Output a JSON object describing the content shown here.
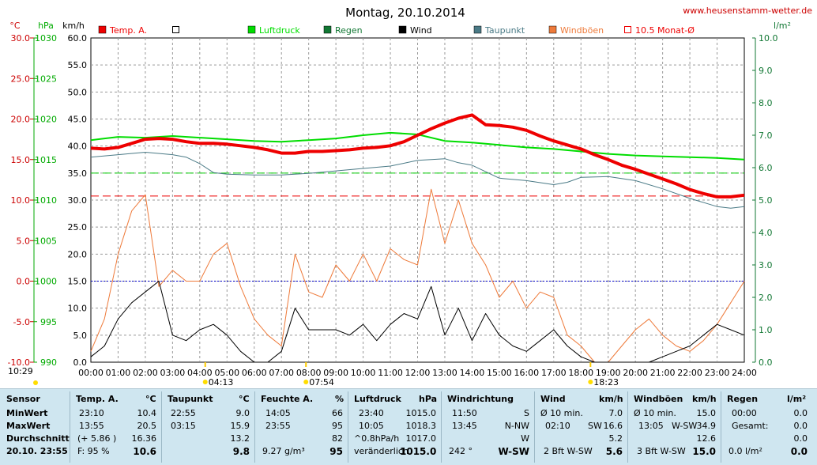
{
  "title": "Montag, 20.10.2014",
  "site": "www.heusenstamm-wetter.de",
  "axis_units": {
    "temp": "°C",
    "press": "hPa",
    "wind": "km/h",
    "rain": "l/m²"
  },
  "legend": [
    {
      "label": "Temp. A.",
      "color": "#ee0000",
      "box": "fill"
    },
    {
      "label": "",
      "color": "#ffffff",
      "box": "outline"
    },
    {
      "label": "Luftdruck",
      "color": "#00dd00",
      "box": "fill"
    },
    {
      "label": "Regen",
      "color": "#117733",
      "box": "fill"
    },
    {
      "label": "Wind",
      "color": "#000000",
      "box": "fill"
    },
    {
      "label": "Taupunkt",
      "color": "#4a7a86",
      "box": "fill"
    },
    {
      "label": "Windböen",
      "color": "#ee7a3a",
      "box": "fill"
    },
    {
      "label": "10.5 Monat-Ø",
      "color": "#ee0000",
      "box": "outline"
    }
  ],
  "markers": {
    "left_time": "10:29",
    "m1": "04:13",
    "m2": "07:54",
    "m3": "18:23"
  },
  "chart_data": {
    "type": "line",
    "x_ticks": [
      "00:00",
      "01:00",
      "02:00",
      "03:00",
      "04:00",
      "05:00",
      "06:00",
      "07:00",
      "08:00",
      "09:00",
      "10:00",
      "11:00",
      "12:00",
      "13:00",
      "14:00",
      "15:00",
      "16:00",
      "17:00",
      "18:00",
      "19:00",
      "20:00",
      "21:00",
      "22:00",
      "23:00",
      "24:00"
    ],
    "xlim": [
      0,
      24
    ],
    "temp_ticks": [
      "30.0",
      "25.0",
      "20.0",
      "15.0",
      "10.0",
      "5.0",
      "0.0",
      "-5.0",
      "-10.0"
    ],
    "press_ticks": [
      "1030",
      "1025",
      "1020",
      "1015",
      "1010",
      "1005",
      "1000",
      "995",
      "990"
    ],
    "wind_ticks": [
      "60.0",
      "55.0",
      "50.0",
      "45.0",
      "40.0",
      "35.0",
      "30.0",
      "25.0",
      "20.0",
      "15.0",
      "10.0",
      "5.0",
      "0.0"
    ],
    "rain_ticks": [
      "10.0",
      "9.0",
      "8.0",
      "7.0",
      "6.0",
      "5.0",
      "4.0",
      "3.0",
      "2.0",
      "1.0",
      "0.0"
    ],
    "temp_range": [
      -10,
      30
    ],
    "press_range": [
      990,
      1030
    ],
    "wind_range": [
      0,
      60
    ],
    "rain_range": [
      0,
      10
    ],
    "reference_lines": [
      {
        "name": "10.5 Monat-Ø",
        "axis": "temp",
        "value": 10.5,
        "color": "#ee0000"
      },
      {
        "axis": "wind",
        "value": 35,
        "color": "#00cc00"
      },
      {
        "axis": "temp",
        "value": 0,
        "color": "#0000cc"
      }
    ],
    "series": [
      {
        "name": "Temp. A.",
        "axis": "temp",
        "color": "#ee0000",
        "x": [
          0,
          0.5,
          1,
          1.5,
          2,
          2.5,
          3,
          3.5,
          4,
          4.5,
          5,
          5.5,
          6,
          6.5,
          7,
          7.5,
          8,
          8.5,
          9,
          9.5,
          10,
          10.5,
          11,
          11.5,
          12,
          12.5,
          13,
          13.5,
          14,
          14.5,
          15,
          15.5,
          16,
          16.5,
          17,
          17.5,
          18,
          18.5,
          19,
          19.5,
          20,
          20.5,
          21,
          21.5,
          22,
          22.5,
          23,
          23.5,
          24
        ],
        "y": [
          16.4,
          16.3,
          16.5,
          17,
          17.5,
          17.6,
          17.5,
          17.2,
          17,
          17,
          16.9,
          16.7,
          16.5,
          16.2,
          15.8,
          15.8,
          16,
          16,
          16.1,
          16.2,
          16.4,
          16.5,
          16.7,
          17.2,
          18,
          18.8,
          19.5,
          20.1,
          20.5,
          19.3,
          19.2,
          19,
          18.6,
          17.9,
          17.3,
          16.8,
          16.3,
          15.6,
          15,
          14.3,
          13.8,
          13.2,
          12.6,
          12,
          11.3,
          10.8,
          10.4,
          10.4,
          10.6
        ]
      },
      {
        "name": "Luftdruck",
        "axis": "press",
        "color": "#00dd00",
        "x": [
          0,
          1,
          2,
          3,
          4,
          5,
          6,
          7,
          8,
          9,
          10,
          11,
          12,
          13,
          14,
          15,
          16,
          17,
          18,
          19,
          20,
          21,
          22,
          23,
          24
        ],
        "y": [
          1017.4,
          1017.8,
          1017.7,
          1017.9,
          1017.7,
          1017.5,
          1017.3,
          1017.2,
          1017.4,
          1017.6,
          1018.0,
          1018.3,
          1018.1,
          1017.3,
          1017.1,
          1016.8,
          1016.5,
          1016.3,
          1016.0,
          1015.7,
          1015.5,
          1015.4,
          1015.3,
          1015.2,
          1015.0
        ]
      },
      {
        "name": "Taupunkt",
        "axis": "temp",
        "color": "#4a7a86",
        "x": [
          0,
          1,
          2,
          3,
          3.5,
          4,
          4.5,
          5,
          6,
          7,
          8,
          9,
          10,
          11,
          12,
          13,
          13.5,
          14,
          15,
          16,
          17,
          17.5,
          18,
          19,
          20,
          21,
          22,
          23,
          23.5,
          24
        ],
        "y": [
          15.3,
          15.6,
          15.9,
          15.6,
          15.3,
          14.5,
          13.4,
          13.2,
          13.1,
          13.1,
          13.3,
          13.6,
          13.9,
          14.2,
          14.9,
          15.1,
          14.6,
          14.3,
          12.7,
          12.4,
          11.9,
          12.2,
          12.8,
          12.9,
          12.4,
          11.4,
          10.2,
          9.2,
          9.0,
          9.2
        ]
      },
      {
        "name": "Wind",
        "axis": "wind",
        "color": "#000000",
        "x": [
          0,
          0.5,
          1,
          1.5,
          2,
          2.5,
          3,
          3.5,
          4,
          4.5,
          5,
          5.5,
          6,
          6.5,
          7,
          7.5,
          8,
          8.5,
          9,
          9.5,
          10,
          10.5,
          11,
          11.5,
          12,
          12.5,
          13,
          13.5,
          14,
          14.5,
          15,
          15.5,
          16,
          16.5,
          17,
          17.5,
          18,
          18.5,
          19,
          19.5,
          20,
          20.5,
          21,
          21.5,
          22,
          22.5,
          23,
          23.5,
          24
        ],
        "y": [
          1,
          3,
          8,
          11,
          13,
          15,
          5,
          4,
          6,
          7,
          5,
          2,
          0,
          0,
          2,
          10,
          6,
          6,
          6,
          5,
          7,
          4,
          7,
          9,
          8,
          14,
          5,
          10,
          4,
          9,
          5,
          3,
          2,
          4,
          6,
          3,
          1,
          0,
          0,
          0,
          0,
          0,
          1,
          2,
          3,
          5,
          7,
          6,
          5
        ]
      },
      {
        "name": "Windböen",
        "axis": "wind",
        "color": "#ee7a3a",
        "x": [
          0,
          0.5,
          1,
          1.5,
          2,
          2.5,
          3,
          3.5,
          4,
          4.5,
          5,
          5.5,
          6,
          6.5,
          7,
          7.5,
          8,
          8.5,
          9,
          9.5,
          10,
          10.5,
          11,
          11.5,
          12,
          12.5,
          13,
          13.5,
          14,
          14.5,
          15,
          15.5,
          16,
          16.5,
          17,
          17.5,
          18,
          18.5,
          19,
          19.5,
          20,
          20.5,
          21,
          21.5,
          22,
          22.5,
          23,
          23.5,
          24
        ],
        "y": [
          2,
          8,
          20,
          28,
          31,
          14,
          17,
          15,
          15,
          20,
          22,
          14,
          8,
          5,
          3,
          20,
          13,
          12,
          18,
          15,
          20,
          15,
          21,
          19,
          18,
          32,
          22,
          30,
          22,
          18,
          12,
          15,
          10,
          13,
          12,
          5,
          3,
          0,
          0,
          3,
          6,
          8,
          5,
          3,
          2,
          4,
          7,
          11,
          15
        ]
      }
    ]
  },
  "stats": {
    "labels": {
      "sensor": "Sensor",
      "min": "MinWert",
      "max": "MaxWert",
      "avg": "Durchschnitt",
      "date": "20.10. 23:55"
    },
    "temp": {
      "title": "Temp. A.",
      "unit": "°C",
      "min_time": "23:10",
      "min_val": "10.4",
      "max_time": "13:55",
      "max_val": "20.5",
      "avg_diff": "(+ 5.86 )",
      "avg_val": "16.36",
      "cur_extra": "F: 95 %",
      "cur_val": "10.6"
    },
    "dew": {
      "title": "Taupunkt",
      "unit": "°C",
      "min_time": "22:55",
      "min_val": "9.0",
      "max_time": "03:15",
      "max_val": "15.9",
      "avg_val": "13.2",
      "cur_val": "9.8"
    },
    "hum": {
      "title": "Feuchte A.",
      "unit": "%",
      "min_time": "14:05",
      "min_val": "66",
      "max_time": "23:55",
      "max_val": "95",
      "avg_val": "82",
      "cur_extra": "9.27 g/m³",
      "cur_val": "95"
    },
    "press": {
      "title": "Luftdruck",
      "unit": "hPa",
      "min_time": "23:40",
      "min_val": "1015.0",
      "max_time": "10:05",
      "max_val": "1018.3",
      "avg_extra": "^0.8hPa/h",
      "avg_val": "1017.0",
      "cur_extra": "veränderlich",
      "cur_val": "1015.0"
    },
    "dir": {
      "title": "Windrichtung",
      "min_time": "11:50",
      "min_val": "S",
      "max_time": "13:45",
      "max_val": "N-NW",
      "avg_val": "W",
      "cur_extra": "242 °",
      "cur_val": "W-SW"
    },
    "wind": {
      "title": "Wind",
      "unit": "km/h",
      "min_time": "Ø 10 min.",
      "min_val": "7.0",
      "max_time": "02:10",
      "max_dir": "SW",
      "max_val": "16.6",
      "avg_val": "5.2",
      "cur_extra": "2 Bft W-SW",
      "cur_val": "5.6"
    },
    "gust": {
      "title": "Windböen",
      "unit": "km/h",
      "min_time": "Ø 10 min.",
      "min_val": "15.0",
      "max_time": "13:05",
      "max_dir": "W-SW",
      "max_val": "34.9",
      "avg_val": "12.6",
      "cur_extra": "3 Bft W-SW",
      "cur_val": "15.0"
    },
    "rain": {
      "title": "Regen",
      "unit": "l/m²",
      "min_time": "00:00",
      "min_val": "0.0",
      "max_time": "Gesamt:",
      "max_val": "0.0",
      "avg_val": "0.0",
      "cur_extra": "0.0 l/m²",
      "cur_val": "0.0"
    }
  }
}
